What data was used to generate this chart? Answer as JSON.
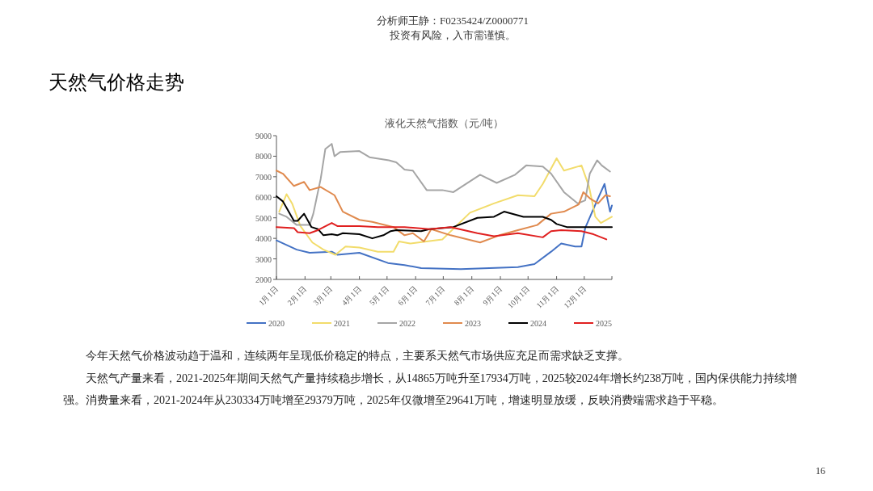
{
  "chart_data": {
    "type": "line",
    "title": "液化天然气指数（元/吨）",
    "annotations": [
      "分析师王静：F0235424/Z0000771",
      "投资有风险，入市需谨慎。",
      "天然气价格走势",
      "今年天然气价格波动趋于温和，连续两年呈现低价稳定的特点，主要系天然气市场供应充足而需求缺乏支撑。",
      "天然气产量来看，2021-2025年期间天然气产量持续稳步增长，从14865万吨升至17934万吨，2025较2024年增长约238万吨，国内保供能力持续增强。消费量来看，2021-2024年从230334万吨增至29379万吨，2025年仅微增至29641万吨，增速明显放缓，反映消费端需求趋于平稳。",
      "16"
    ],
    "xlim": [
      "--01-01",
      "--12-31"
    ],
    "xticks": [
      {
        "value": "--01-01",
        "label": "1月1日"
      },
      {
        "value": "--02-01",
        "label": "2月1日"
      },
      {
        "value": "--03-01",
        "label": "3月1日"
      },
      {
        "value": "--04-01",
        "label": "4月1日"
      },
      {
        "value": "--05-01",
        "label": "5月1日"
      },
      {
        "value": "--06-01",
        "label": "6月1日"
      },
      {
        "value": "--07-01",
        "label": "7月1日"
      },
      {
        "value": "--08-01",
        "label": "8月1日"
      },
      {
        "value": "--09-01",
        "label": "9月1日"
      },
      {
        "value": "--10-01",
        "label": "10月1日"
      },
      {
        "value": "--11-01",
        "label": "11月1日"
      },
      {
        "value": "--12-01",
        "label": "12月1日"
      },
      {
        "value": "--12-31",
        "label": null
      }
    ],
    "ylim": [
      2000,
      9000
    ],
    "yticks": [
      2000,
      3000,
      4000,
      5000,
      6000,
      7000,
      8000,
      9000
    ],
    "legend": "bottom",
    "grid": false,
    "marker": "none",
    "line_style": "solid",
    "series": [
      {
        "name": "2020",
        "color": "#4472c4",
        "x": [
          "--01-01",
          "--01-23",
          "--02-06",
          "--03-02",
          "--03-08",
          "--04-01",
          "--05-02",
          "--05-20",
          "--06-07",
          "--07-20",
          "--09-20",
          "--10-08",
          "--10-26",
          "--11-06",
          "--11-21",
          "--11-28",
          "--12-02",
          "--12-15",
          "--12-23",
          "--12-26",
          "--12-29",
          "--12-31"
        ],
        "values": [
          3900,
          3450,
          3300,
          3350,
          3200,
          3300,
          2800,
          2700,
          2550,
          2500,
          2600,
          2750,
          3350,
          3750,
          3600,
          3600,
          4500,
          5850,
          6650,
          5950,
          5300,
          5600
        ]
      },
      {
        "name": "2021",
        "color": "#f2dc6b",
        "x": [
          "--01-04",
          "--01-12",
          "--01-18",
          "--01-27",
          "--02-09",
          "--02-21",
          "--03-06",
          "--03-17",
          "--04-01",
          "--04-21",
          "--05-08",
          "--05-14",
          "--05-26",
          "--06-30",
          "--07-30",
          "--08-25",
          "--09-20",
          "--10-08",
          "--10-17",
          "--11-01",
          "--11-09",
          "--11-28",
          "--12-06",
          "--12-13",
          "--12-19",
          "--12-31"
        ],
        "values": [
          5300,
          6150,
          5700,
          4600,
          3800,
          3450,
          3200,
          3600,
          3550,
          3350,
          3350,
          3850,
          3750,
          3950,
          5250,
          5700,
          6100,
          6050,
          6650,
          7900,
          7300,
          7550,
          6550,
          5050,
          4750,
          5050
        ]
      },
      {
        "name": "2022",
        "color": "#a5a5a5",
        "x": [
          "--01-04",
          "--01-12",
          "--01-23",
          "--02-06",
          "--02-10",
          "--02-18",
          "--02-23",
          "--03-02",
          "--03-05",
          "--03-11",
          "--04-01",
          "--04-12",
          "--05-03",
          "--05-11",
          "--05-20",
          "--05-29",
          "--06-13",
          "--06-30",
          "--07-12",
          "--08-10",
          "--08-28",
          "--09-17",
          "--09-29",
          "--10-17",
          "--10-26",
          "--11-09",
          "--11-24",
          "--12-02",
          "--12-07",
          "--12-15",
          "--12-20",
          "--12-29"
        ],
        "values": [
          5200,
          5050,
          4650,
          4650,
          5200,
          6900,
          8350,
          8600,
          8000,
          8200,
          8250,
          7950,
          7800,
          7700,
          7350,
          7300,
          6350,
          6350,
          6250,
          7100,
          6700,
          7100,
          7550,
          7500,
          7150,
          6250,
          5700,
          5850,
          7150,
          7800,
          7550,
          7250
        ]
      },
      {
        "name": "2023",
        "color": "#e08a4e",
        "x": [
          "--01-01",
          "--01-08",
          "--01-20",
          "--01-31",
          "--02-06",
          "--02-18",
          "--03-05",
          "--03-14",
          "--04-01",
          "--04-15",
          "--05-08",
          "--05-20",
          "--05-29",
          "--06-10",
          "--06-18",
          "--07-09",
          "--08-10",
          "--08-31",
          "--09-20",
          "--10-11",
          "--10-26",
          "--11-09",
          "--11-25",
          "--11-30",
          "--12-07",
          "--12-16",
          "--12-24",
          "--12-29"
        ],
        "values": [
          7300,
          7150,
          6550,
          6750,
          6350,
          6500,
          6100,
          5300,
          4900,
          4800,
          4550,
          4150,
          4250,
          3850,
          4450,
          4150,
          3800,
          4150,
          4400,
          4650,
          5200,
          5300,
          5650,
          6250,
          5950,
          5700,
          6100,
          6050
        ]
      },
      {
        "name": "2024",
        "color": "#000000",
        "x": [
          "--01-01",
          "--01-08",
          "--01-20",
          "--01-24",
          "--01-31",
          "--02-08",
          "--02-15",
          "--02-21",
          "--03-02",
          "--03-08",
          "--03-14",
          "--04-01",
          "--04-15",
          "--04-27",
          "--05-05",
          "--05-11",
          "--06-07",
          "--06-16",
          "--07-12",
          "--08-07",
          "--08-25",
          "--09-05",
          "--09-26",
          "--10-17",
          "--10-26",
          "--11-01",
          "--11-12",
          "--11-29",
          "--12-15",
          "--12-31"
        ],
        "values": [
          6050,
          5800,
          4850,
          4850,
          5200,
          4550,
          4450,
          4150,
          4200,
          4150,
          4250,
          4200,
          4000,
          4150,
          4350,
          4400,
          4350,
          4450,
          4550,
          5000,
          5050,
          5300,
          5050,
          5050,
          4900,
          4700,
          4550,
          4550,
          4550,
          4550
        ]
      },
      {
        "name": "2025",
        "color": "#e02020",
        "x": [
          "--01-01",
          "--01-20",
          "--01-24",
          "--02-06",
          "--02-15",
          "--03-02",
          "--03-08",
          "--04-01",
          "--04-21",
          "--05-20",
          "--06-16",
          "--07-09",
          "--08-07",
          "--08-25",
          "--09-20",
          "--10-17",
          "--10-26",
          "--11-06",
          "--11-28",
          "--12-11",
          "--12-25"
        ],
        "values": [
          4550,
          4500,
          4300,
          4250,
          4400,
          4750,
          4600,
          4600,
          4550,
          4550,
          4450,
          4550,
          4250,
          4100,
          4250,
          4050,
          4350,
          4400,
          4350,
          4200,
          3950
        ]
      }
    ]
  }
}
